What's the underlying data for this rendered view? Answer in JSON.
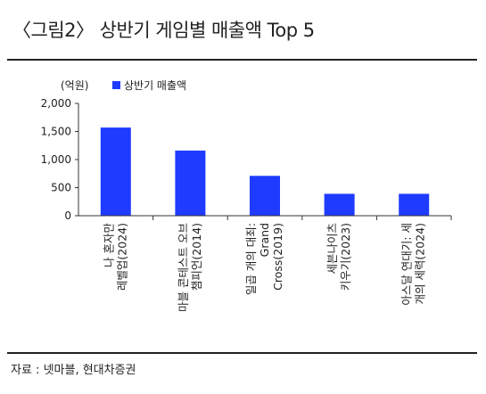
{
  "title": "〈그림2〉 상반기 게임별 매출액 Top 5",
  "source": "자료 : 넷마블, 현대차증권",
  "chart_data": {
    "type": "bar",
    "unit_label": "(억원)",
    "series": [
      {
        "name": "상반기 매출액",
        "values": [
          1570,
          1160,
          710,
          390,
          390
        ]
      }
    ],
    "categories": [
      [
        "나 혼자만",
        "레벨업(2024)"
      ],
      [
        "마블 콘테스트 오브",
        "챔피언(2014)"
      ],
      [
        "일곱 개의 대죄:",
        "Grand",
        "Cross(2019)"
      ],
      [
        "세븐나이츠",
        "키우기(2023)"
      ],
      [
        "아스달 연대기: 세",
        "개의 세력(2024)"
      ]
    ],
    "yticks": [
      "2,000",
      "1,500",
      "1,000",
      "500",
      "0"
    ],
    "ylim": [
      0,
      2000
    ],
    "bar_color": "#1f3bff",
    "legend_position": "top"
  }
}
